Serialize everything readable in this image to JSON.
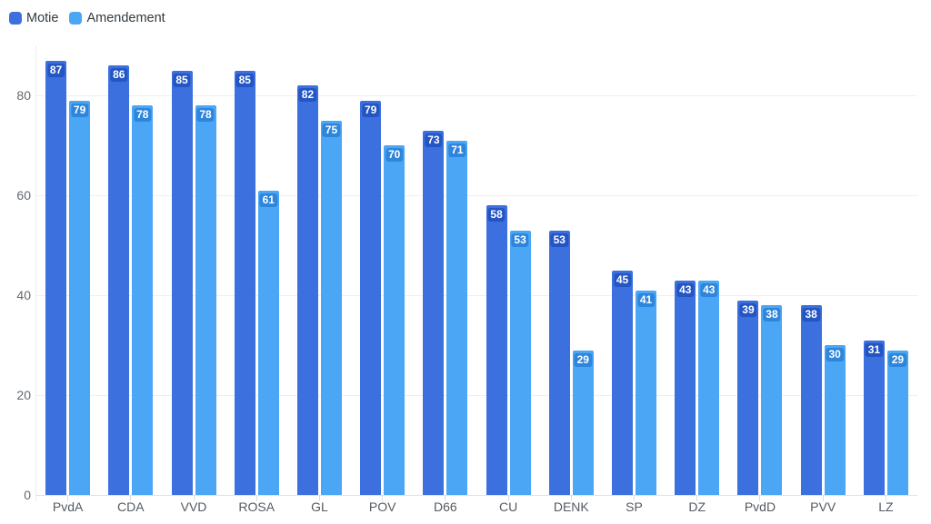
{
  "chart_data": {
    "type": "bar",
    "title": "",
    "xlabel": "",
    "ylabel": "",
    "categories": [
      "PvdA",
      "CDA",
      "VVD",
      "ROSA",
      "GL",
      "POV",
      "D66",
      "CU",
      "DENK",
      "SP",
      "DZ",
      "PvdD",
      "PVV",
      "LZ"
    ],
    "series": [
      {
        "name": "Motie",
        "color": "#3c70df",
        "label_bg": "#2355c4",
        "values": [
          87,
          86,
          85,
          85,
          82,
          79,
          73,
          58,
          53,
          45,
          43,
          39,
          38,
          31
        ]
      },
      {
        "name": "Amendement",
        "color": "#4ba6f5",
        "label_bg": "#2e86dc",
        "values": [
          79,
          78,
          78,
          61,
          75,
          70,
          71,
          53,
          29,
          41,
          43,
          38,
          30,
          29
        ]
      }
    ],
    "ylim": [
      0,
      90
    ],
    "yticks": [
      0,
      20,
      40,
      60,
      80
    ],
    "grid": true,
    "legend_position": "top-left",
    "value_labels": "inside-top",
    "label_text_color": "#ffffff",
    "grid_color": "#efefef",
    "axis_text_color": "#62686e"
  }
}
